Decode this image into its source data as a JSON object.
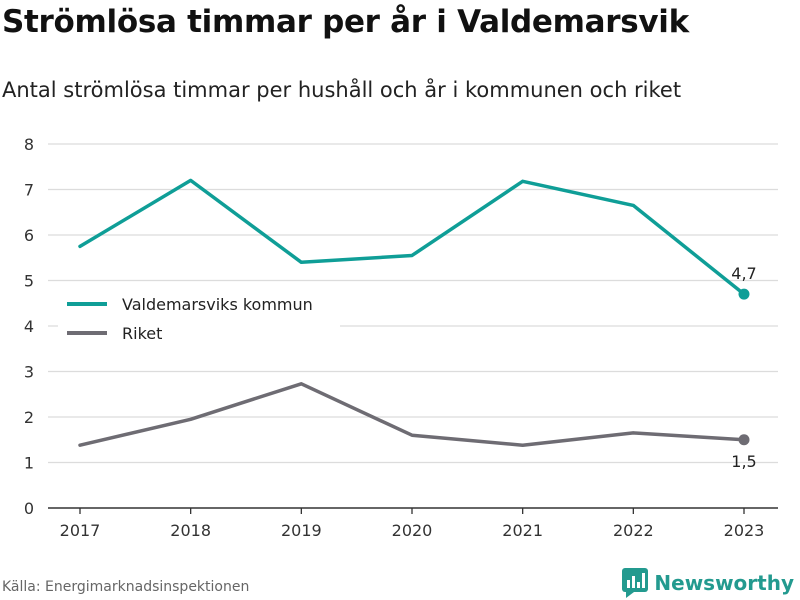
{
  "header": {
    "title": "Strömlösa timmar per år i Valdemarsvik",
    "subtitle": "Antal strömlösa timmar per hushåll och år i kommunen och riket"
  },
  "footer": {
    "source": "Källa: Energimarknadsinspektionen",
    "brand": "Newsworthy",
    "brand_icon": "bar-chart-logo-icon"
  },
  "colors": {
    "series_1": "#0f9e97",
    "series_2": "#6e6c73",
    "grid": "#dcdcdc",
    "axis": "#333333",
    "brand": "#239a8f"
  },
  "chart_data": {
    "type": "line",
    "x": [
      "2017",
      "2018",
      "2019",
      "2020",
      "2021",
      "2022",
      "2023"
    ],
    "ylim": [
      0,
      8
    ],
    "yticks": [
      "0",
      "1",
      "2",
      "3",
      "4",
      "5",
      "6",
      "7",
      "8"
    ],
    "grid": true,
    "legend_position": "middle-left",
    "series": [
      {
        "name": "Valdemarsviks kommun",
        "values": [
          5.75,
          7.2,
          5.4,
          5.55,
          7.18,
          6.65,
          4.7
        ],
        "end_label": "4,7"
      },
      {
        "name": "Riket",
        "values": [
          1.38,
          1.95,
          2.73,
          1.6,
          1.38,
          1.65,
          1.5
        ],
        "end_label": "1,5"
      }
    ]
  }
}
